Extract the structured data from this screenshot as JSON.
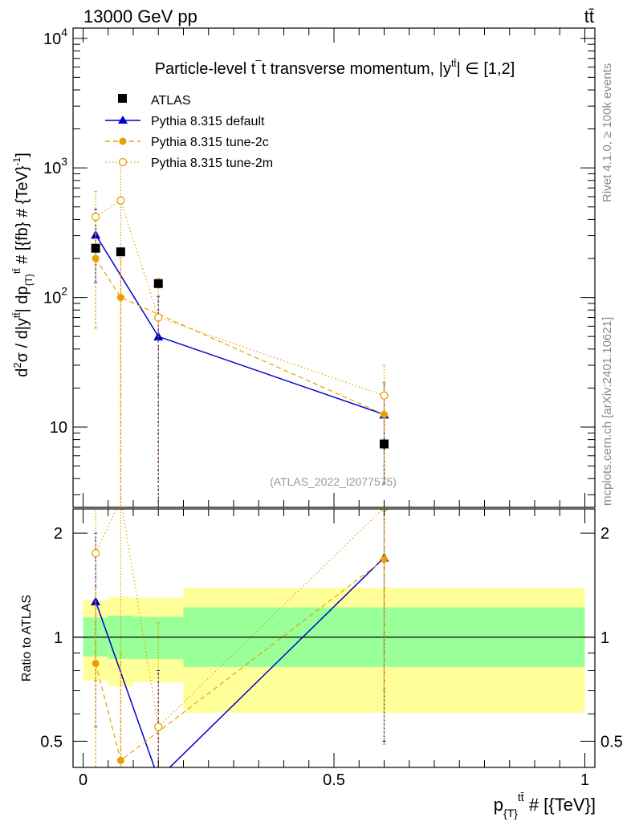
{
  "header": {
    "left": "13000 GeV pp",
    "right": "tt̄"
  },
  "chart_data": [
    {
      "type": "line",
      "panel": "main",
      "title": "Particle-level tt̄ transverse momentum, |yᵗᵗ̄| ∈ [1,2]",
      "title_parts": {
        "prefix": "Particle-level t",
        "mid": "t transverse momentum, |y",
        "sup": "tt̄",
        "suffix": "| ∈ [1,2]"
      },
      "ylabel": "d²σ / d|yᵗᵗ̄| dp{T}ᵗᵗ̄ # [{fb} # {TeV}⁻¹]",
      "ylabel_parts": {
        "a": "d",
        "b": "2",
        "c": "σ / d|y",
        "d": "tt̄",
        "e": "| dp",
        "f": "{T}",
        "g": "tt̄",
        "h": " # [{fb} # {TeV}",
        "i": "-1",
        "j": "]"
      },
      "yscale": "log",
      "ylim": [
        2.4,
        12000
      ],
      "xlim": [
        -0.02,
        1.02
      ],
      "yticks": [
        {
          "value": 10,
          "label": "10"
        },
        {
          "value": 100,
          "label": "10",
          "exp": "2"
        },
        {
          "value": 1000,
          "label": "10",
          "exp": "3"
        },
        {
          "value": 10000,
          "label": "10",
          "exp": "4"
        }
      ],
      "watermark": "(ATLAS_2022_I2077575)",
      "legend": [
        "ATLAS",
        "Pythia 8.315 default",
        "Pythia 8.315 tune-2c",
        "Pythia 8.315 tune-2m"
      ],
      "series": [
        {
          "name": "ATLAS",
          "style": "data",
          "color": "#000000",
          "points": [
            {
              "x": 0.025,
              "y": 240,
              "lo": 225,
              "hi": 255
            },
            {
              "x": 0.075,
              "y": 225,
              "lo": 212,
              "hi": 238
            },
            {
              "x": 0.15,
              "y": 128,
              "lo": 118,
              "hi": 138
            },
            {
              "x": 0.6,
              "y": 7.4,
              "lo": 6.6,
              "hi": 8.2
            }
          ]
        },
        {
          "name": "Pythia 8.315 default",
          "style": "solid",
          "marker": "triangle",
          "color": "#0000cc",
          "points": [
            {
              "x": 0.025,
              "y": 305,
              "lo": 130,
              "hi": 480
            },
            {
              "x": 0.15,
              "y": 50,
              "lo": 1,
              "hi": 102
            },
            {
              "x": 0.6,
              "y": 12.5,
              "lo": 3.7,
              "hi": 22
            }
          ]
        },
        {
          "name": "Pythia 8.315 tune-2c",
          "style": "dashed",
          "marker": "filled-circle",
          "color": "#e8a000",
          "points": [
            {
              "x": 0.025,
              "y": 200,
              "lo": 58,
              "hi": 340
            },
            {
              "x": 0.075,
              "y": 100,
              "lo": 1,
              "hi": 200
            },
            {
              "x": 0.6,
              "y": 12.5,
              "lo": 3.6,
              "hi": 22
            }
          ]
        },
        {
          "name": "Pythia 8.315 tune-2m",
          "style": "dotted",
          "marker": "open-circle",
          "color": "#e8a000",
          "points": [
            {
              "x": 0.025,
              "y": 420,
              "lo": 180,
              "hi": 660
            },
            {
              "x": 0.075,
              "y": 560,
              "lo": 1,
              "hi": 1150
            },
            {
              "x": 0.15,
              "y": 70,
              "lo": 1,
              "hi": 140
            },
            {
              "x": 0.6,
              "y": 17.5,
              "lo": 5,
              "hi": 30
            }
          ]
        }
      ]
    },
    {
      "type": "line",
      "panel": "ratio",
      "ylabel": "Ratio to ATLAS",
      "yscale": "log",
      "ylim": [
        0.42,
        2.35
      ],
      "xlim": [
        -0.02,
        1.02
      ],
      "xlabel": "p{T}ᵗᵗ̄ # [{TeV}]",
      "xlabel_parts": {
        "a": "p",
        "b": "{T}",
        "c": "tt̄",
        "d": " # [{TeV}]"
      },
      "xticks": [
        {
          "value": 0,
          "label": "0"
        },
        {
          "value": 0.5,
          "label": "0.5"
        },
        {
          "value": 1,
          "label": "1"
        }
      ],
      "yticks": [
        {
          "value": 0.5,
          "label": "0.5"
        },
        {
          "value": 1,
          "label": "1"
        },
        {
          "value": 2,
          "label": "2"
        }
      ],
      "bands": [
        {
          "x0": 0.0,
          "x1": 0.05,
          "inner": [
            0.88,
            1.14
          ],
          "outer": [
            0.75,
            1.28
          ]
        },
        {
          "x0": 0.05,
          "x1": 0.1,
          "inner": [
            0.865,
            1.155
          ],
          "outer": [
            0.72,
            1.31
          ]
        },
        {
          "x0": 0.1,
          "x1": 0.2,
          "inner": [
            0.865,
            1.145
          ],
          "outer": [
            0.74,
            1.3
          ]
        },
        {
          "x0": 0.2,
          "x1": 1.0,
          "inner": [
            0.82,
            1.22
          ],
          "outer": [
            0.605,
            1.39
          ]
        }
      ],
      "series": [
        {
          "name": "Pythia 8.315 default",
          "style": "solid",
          "marker": "triangle",
          "color": "#0000cc",
          "points": [
            {
              "x": 0.025,
              "y": 1.27,
              "lo": 0.55,
              "hi": 2.0
            },
            {
              "x": 0.15,
              "y": 0.39,
              "lo": 0.01,
              "hi": 0.8
            },
            {
              "x": 0.6,
              "y": 1.7,
              "lo": 0.5,
              "hi": 2.9
            }
          ]
        },
        {
          "name": "Pythia 8.315 tune-2c",
          "style": "dashed",
          "marker": "filled-circle",
          "color": "#e8a000",
          "points": [
            {
              "x": 0.025,
              "y": 0.84,
              "lo": 0.24,
              "hi": 1.4
            },
            {
              "x": 0.075,
              "y": 0.44,
              "lo": 0.01,
              "hi": 0.9
            },
            {
              "x": 0.6,
              "y": 1.68,
              "lo": 0.49,
              "hi": 2.9
            }
          ]
        },
        {
          "name": "Pythia 8.315 tune-2m",
          "style": "dotted",
          "marker": "open-circle",
          "color": "#e8a000",
          "points": [
            {
              "x": 0.025,
              "y": 1.75,
              "lo": 0.75,
              "hi": 2.75
            },
            {
              "x": 0.075,
              "y": 2.5,
              "lo": 0.01,
              "hi": 5.0
            },
            {
              "x": 0.15,
              "y": 0.55,
              "lo": 0.01,
              "hi": 1.1
            },
            {
              "x": 0.6,
              "y": 2.37,
              "lo": 0.7,
              "hi": 4.0
            }
          ]
        }
      ]
    }
  ],
  "side_labels": {
    "rivet": "Rivet 4.1.0, ≥ 100k events",
    "mcplots": "mcplots.cern.ch [arXiv:2401.10621]"
  }
}
